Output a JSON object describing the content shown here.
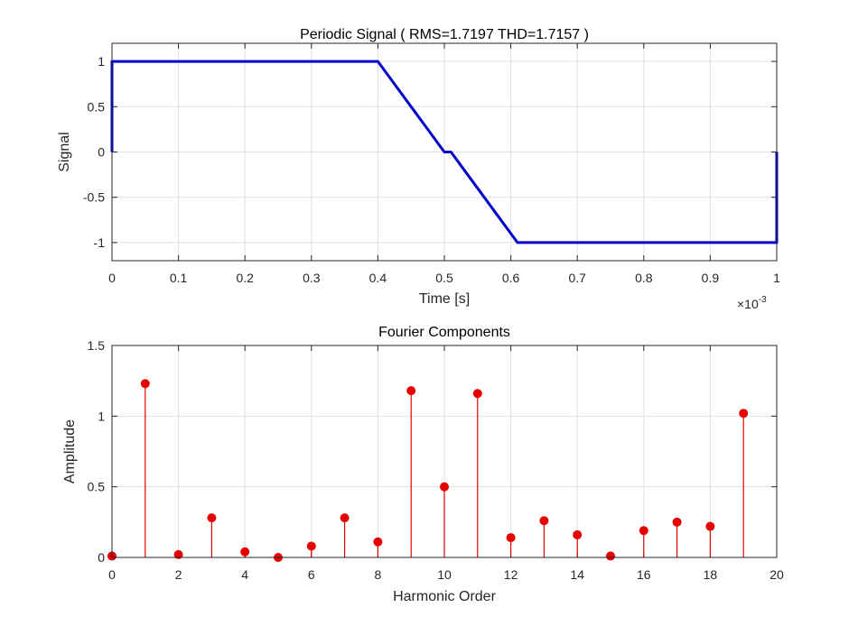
{
  "chart_data": [
    {
      "type": "line",
      "title": "Periodic Signal ( RMS=1.7197 THD=1.7157 )",
      "xlabel": "Time [s]",
      "ylabel": "Signal",
      "x_multiplier": "×10",
      "x_multiplier_exp": "-3",
      "xlim": [
        0,
        1
      ],
      "ylim": [
        -1.2,
        1.2
      ],
      "xticks": [
        "0",
        "0.1",
        "0.2",
        "0.3",
        "0.4",
        "0.5",
        "0.6",
        "0.7",
        "0.8",
        "0.9",
        "1"
      ],
      "yticks": [
        "1",
        "0.5",
        "0",
        "-0.5",
        "-1"
      ],
      "grid": true,
      "color": "#0000cc",
      "series": [
        {
          "x": [
            0,
            0,
            0.4,
            0.5,
            0.51,
            0.61,
            1.0,
            1.0
          ],
          "y": [
            0,
            1,
            1,
            0,
            0,
            -1,
            -1,
            0
          ]
        }
      ]
    },
    {
      "type": "stem",
      "title": "Fourier Components",
      "xlabel": "Harmonic Order",
      "ylabel": "Amplitude",
      "xlim": [
        0,
        20
      ],
      "ylim": [
        0,
        1.5
      ],
      "xticks": [
        "0",
        "2",
        "4",
        "6",
        "8",
        "10",
        "12",
        "14",
        "16",
        "18",
        "20"
      ],
      "yticks": [
        "1.5",
        "1",
        "0.5",
        "0"
      ],
      "grid": true,
      "color": "#e60000",
      "x": [
        0,
        1,
        2,
        3,
        4,
        5,
        6,
        7,
        8,
        9,
        10,
        11,
        12,
        13,
        14,
        15,
        16,
        17,
        18,
        19
      ],
      "values": [
        0.01,
        1.23,
        0.02,
        0.28,
        0.04,
        0.0,
        0.08,
        0.28,
        0.11,
        1.18,
        0.5,
        1.16,
        0.14,
        0.26,
        0.16,
        0.01,
        0.19,
        0.25,
        0.22,
        1.02
      ]
    }
  ]
}
